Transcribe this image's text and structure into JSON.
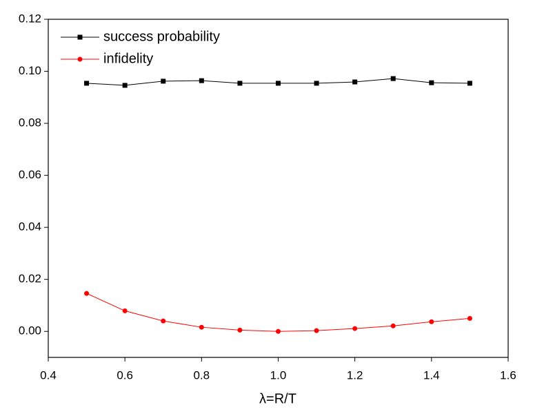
{
  "chart_data": {
    "type": "line",
    "x_label": "λ=R/T",
    "x": [
      0.5,
      0.6,
      0.7,
      0.8,
      0.9,
      1.0,
      1.1,
      1.2,
      1.3,
      1.4,
      1.5
    ],
    "series": [
      {
        "name": "success probability",
        "color": "#000000",
        "marker": "square",
        "values": [
          0.0954,
          0.0946,
          0.0962,
          0.0964,
          0.0954,
          0.0954,
          0.0954,
          0.0959,
          0.0972,
          0.0956,
          0.0954
        ]
      },
      {
        "name": "infidelity",
        "color": "#ff0000",
        "marker": "circle",
        "values": [
          0.0146,
          0.0079,
          0.004,
          0.0016,
          0.0005,
          0.0,
          0.0003,
          0.0011,
          0.0021,
          0.0037,
          0.005
        ]
      }
    ],
    "xlim": [
      0.4,
      1.6
    ],
    "xticks": [
      0.4,
      0.6,
      0.8,
      {
        "value": 1,
        "label": "1.0"
      },
      1.2,
      1.4,
      1.6
    ],
    "ylim": [
      -0.01,
      0.12
    ],
    "yticks": [
      {
        "value": 0,
        "label": "0.00"
      },
      0.02,
      0.04,
      0.06,
      0.08,
      {
        "value": 0.1,
        "label": "0.10"
      },
      0.12
    ],
    "legend": "upper-left"
  }
}
